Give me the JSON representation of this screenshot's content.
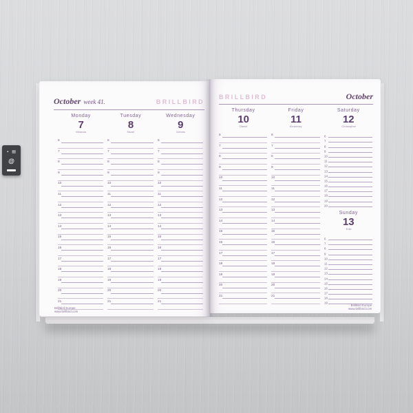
{
  "scene": {
    "description": "open weekly planner lying on a light grey wooden desk",
    "memory_badge": {
      "glyph_top_left": "▪",
      "glyph_top_right": "▤",
      "glyph_center": "@"
    }
  },
  "theme": {
    "accent_purple": "#63456f",
    "logo_pink": "#ddbdd2",
    "line_lavender": "#cdc0d7",
    "line_dark_lavender": "#b5a4c5",
    "desk_grey": "#d4d5d7"
  },
  "book": {
    "pages": [
      {
        "id": "left-page",
        "header_month": "October",
        "header_week": "week 41.",
        "header_logo": "BRILLBIRD",
        "footer_line1": "BrillBird Europe",
        "footer_line2": "www.brillbird.com",
        "days": [
          {
            "name": "Monday",
            "date": "7",
            "nameday": "Miranda",
            "column": 0,
            "style": "double",
            "hours": [
              "6",
              "7",
              "8",
              "9",
              "10",
              "11",
              "12",
              "13",
              "14",
              "15",
              "16",
              "17",
              "18",
              "19",
              "20",
              "21"
            ]
          },
          {
            "name": "Tuesday",
            "date": "8",
            "nameday": "Stuart",
            "column": 1,
            "style": "double",
            "hours": [
              "6",
              "7",
              "8",
              "9",
              "10",
              "11",
              "12",
              "13",
              "14",
              "15",
              "16",
              "17",
              "18",
              "19",
              "20",
              "21"
            ]
          },
          {
            "name": "Wednesday",
            "date": "9",
            "nameday": "Dennis",
            "column": 2,
            "style": "double",
            "hours": [
              "6",
              "7",
              "8",
              "9",
              "10",
              "11",
              "12",
              "13",
              "14",
              "15",
              "16",
              "17",
              "18",
              "19",
              "20",
              "21"
            ]
          }
        ]
      },
      {
        "id": "right-page",
        "header_month": "October",
        "header_week": "",
        "header_logo": "BRILLBIRD",
        "footer_line1": "BrillBird Europe",
        "footer_line2": "www.brillbird.com",
        "days": [
          {
            "name": "Thursday",
            "date": "10",
            "nameday": "Daniel",
            "column": 0,
            "style": "double",
            "hours": [
              "6",
              "7",
              "8",
              "9",
              "10",
              "11",
              "12",
              "13",
              "14",
              "15",
              "16",
              "17",
              "18",
              "19",
              "20",
              "21"
            ]
          },
          {
            "name": "Friday",
            "date": "11",
            "nameday": "Kimberley",
            "column": 1,
            "style": "double",
            "hours": [
              "6",
              "7",
              "8",
              "9",
              "10",
              "11",
              "12",
              "13",
              "14",
              "15",
              "16",
              "17",
              "18",
              "19",
              "20",
              "21"
            ]
          },
          {
            "name": "Saturday",
            "date": "12",
            "nameday": "Christopher",
            "column": 2,
            "style": "single",
            "hours": [
              "6",
              "7",
              "8",
              "9",
              "10",
              "11",
              "12",
              "13",
              "14",
              "15",
              "16",
              "17",
              "18",
              "19",
              "20"
            ]
          },
          {
            "name": "Sunday",
            "date": "13",
            "nameday": "Edie",
            "column": 2,
            "style": "single",
            "hours": [
              "6",
              "7",
              "8",
              "9",
              "10",
              "11",
              "12",
              "13",
              "14",
              "15",
              "16",
              "17",
              "18",
              "19"
            ]
          }
        ]
      }
    ]
  }
}
